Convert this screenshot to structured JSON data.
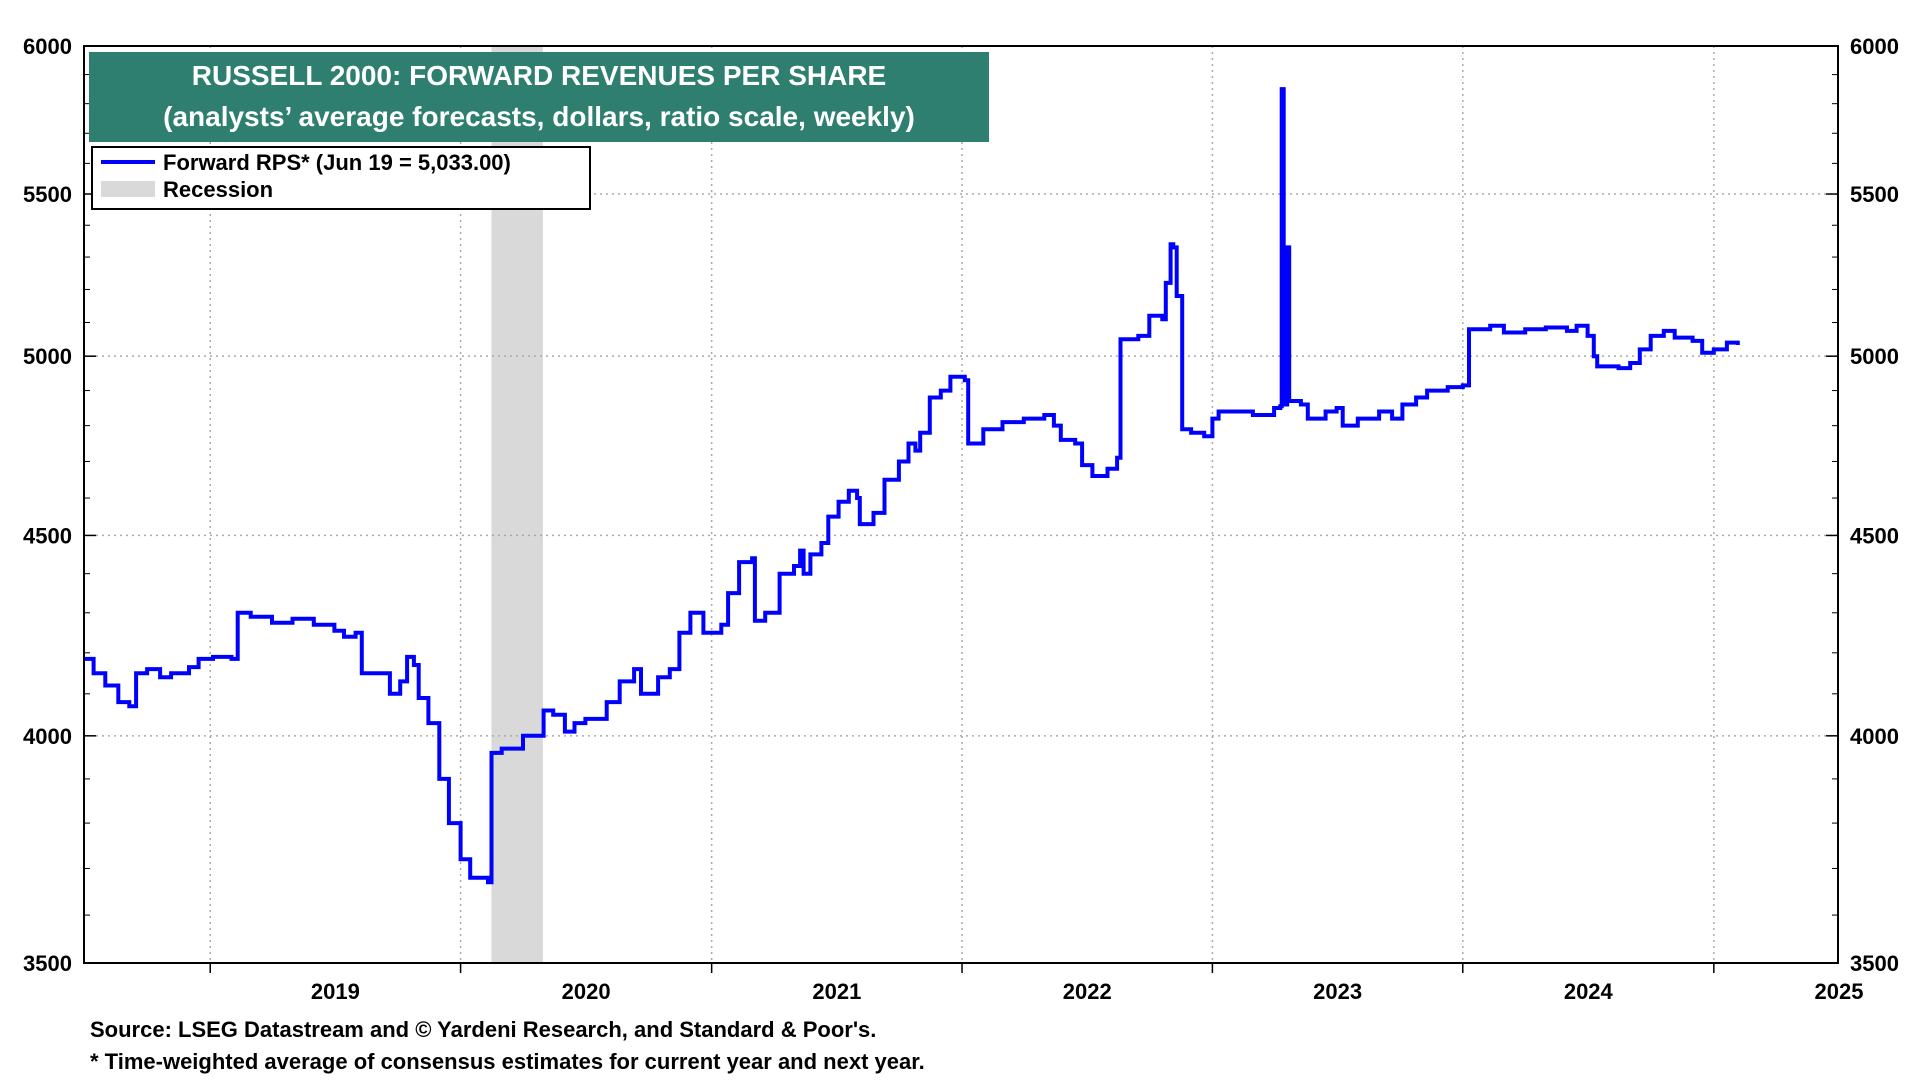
{
  "chart_data": {
    "type": "line",
    "title": "RUSSELL 2000: FORWARD REVENUES PER SHARE",
    "subtitle": "(analysts’ average forecasts, dollars, ratio scale, weekly)",
    "scale": "log",
    "ylim": [
      3500,
      6000
    ],
    "y_ticks": [
      3500,
      4000,
      4500,
      5000,
      5500,
      6000
    ],
    "y_tick_labels": [
      "3500",
      "4000",
      "4500",
      "5000",
      "5500",
      "6000"
    ],
    "x_range": [
      "2018-07-01",
      "2025-07-01"
    ],
    "x_tick_labels": [
      "2019",
      "2020",
      "2021",
      "2022",
      "2023",
      "2024",
      "2025"
    ],
    "grid": true,
    "legend_position": "top-left",
    "colors": {
      "series": "#0000ff",
      "recession": "#d9d9d9",
      "title_bg": "#2e7f6f",
      "grid": "#aaaaaa"
    },
    "series": [
      {
        "name": "Forward RPS* (Jun 19 = 5,033.00)",
        "points": [
          [
            "2018-07-01",
            4185
          ],
          [
            "2018-07-15",
            4150
          ],
          [
            "2018-08-01",
            4120
          ],
          [
            "2018-08-20",
            4080
          ],
          [
            "2018-09-05",
            4070
          ],
          [
            "2018-09-15",
            4150
          ],
          [
            "2018-10-01",
            4160
          ],
          [
            "2018-10-20",
            4140
          ],
          [
            "2018-11-05",
            4150
          ],
          [
            "2018-12-01",
            4165
          ],
          [
            "2018-12-15",
            4185
          ],
          [
            "2019-01-05",
            4190
          ],
          [
            "2019-02-01",
            4185
          ],
          [
            "2019-02-10",
            4300
          ],
          [
            "2019-03-01",
            4290
          ],
          [
            "2019-04-01",
            4275
          ],
          [
            "2019-05-01",
            4285
          ],
          [
            "2019-06-01",
            4270
          ],
          [
            "2019-07-01",
            4255
          ],
          [
            "2019-07-15",
            4240
          ],
          [
            "2019-08-01",
            4250
          ],
          [
            "2019-08-10",
            4150
          ],
          [
            "2019-09-01",
            4150
          ],
          [
            "2019-09-20",
            4100
          ],
          [
            "2019-10-05",
            4130
          ],
          [
            "2019-10-15",
            4190
          ],
          [
            "2019-10-25",
            4170
          ],
          [
            "2019-11-01",
            4090
          ],
          [
            "2019-11-15",
            4030
          ],
          [
            "2019-12-01",
            3900
          ],
          [
            "2019-12-15",
            3800
          ],
          [
            "2020-01-01",
            3720
          ],
          [
            "2020-01-15",
            3680
          ],
          [
            "2020-02-01",
            3680
          ],
          [
            "2020-02-10",
            3670
          ],
          [
            "2020-02-15",
            3960
          ],
          [
            "2020-03-01",
            3970
          ],
          [
            "2020-04-01",
            4000
          ],
          [
            "2020-05-01",
            4060
          ],
          [
            "2020-05-15",
            4050
          ],
          [
            "2020-06-01",
            4010
          ],
          [
            "2020-06-15",
            4030
          ],
          [
            "2020-07-01",
            4040
          ],
          [
            "2020-08-01",
            4080
          ],
          [
            "2020-08-20",
            4130
          ],
          [
            "2020-09-10",
            4160
          ],
          [
            "2020-09-20",
            4100
          ],
          [
            "2020-10-15",
            4140
          ],
          [
            "2020-11-01",
            4160
          ],
          [
            "2020-11-15",
            4250
          ],
          [
            "2020-12-01",
            4300
          ],
          [
            "2020-12-20",
            4250
          ],
          [
            "2021-01-15",
            4270
          ],
          [
            "2021-01-25",
            4350
          ],
          [
            "2021-02-10",
            4430
          ],
          [
            "2021-03-01",
            4440
          ],
          [
            "2021-03-05",
            4280
          ],
          [
            "2021-03-20",
            4300
          ],
          [
            "2021-04-10",
            4400
          ],
          [
            "2021-05-01",
            4420
          ],
          [
            "2021-05-10",
            4460
          ],
          [
            "2021-05-15",
            4400
          ],
          [
            "2021-05-25",
            4450
          ],
          [
            "2021-06-10",
            4480
          ],
          [
            "2021-06-20",
            4550
          ],
          [
            "2021-07-05",
            4590
          ],
          [
            "2021-07-20",
            4620
          ],
          [
            "2021-08-01",
            4600
          ],
          [
            "2021-08-05",
            4530
          ],
          [
            "2021-08-25",
            4560
          ],
          [
            "2021-09-10",
            4650
          ],
          [
            "2021-10-01",
            4700
          ],
          [
            "2021-10-15",
            4750
          ],
          [
            "2021-10-25",
            4730
          ],
          [
            "2021-11-01",
            4780
          ],
          [
            "2021-11-15",
            4880
          ],
          [
            "2021-12-01",
            4900
          ],
          [
            "2021-12-15",
            4940
          ],
          [
            "2022-01-05",
            4930
          ],
          [
            "2022-01-10",
            4750
          ],
          [
            "2022-02-01",
            4790
          ],
          [
            "2022-03-01",
            4810
          ],
          [
            "2022-04-01",
            4820
          ],
          [
            "2022-05-01",
            4830
          ],
          [
            "2022-05-15",
            4800
          ],
          [
            "2022-05-25",
            4760
          ],
          [
            "2022-06-15",
            4750
          ],
          [
            "2022-06-25",
            4690
          ],
          [
            "2022-07-10",
            4660
          ],
          [
            "2022-08-01",
            4680
          ],
          [
            "2022-08-15",
            4710
          ],
          [
            "2022-08-20",
            5050
          ],
          [
            "2022-09-15",
            5060
          ],
          [
            "2022-10-01",
            5120
          ],
          [
            "2022-10-20",
            5110
          ],
          [
            "2022-10-25",
            5220
          ],
          [
            "2022-11-01",
            5340
          ],
          [
            "2022-11-05",
            5330
          ],
          [
            "2022-11-10",
            5180
          ],
          [
            "2022-11-15",
            5180
          ],
          [
            "2022-11-18",
            4790
          ],
          [
            "2022-12-01",
            4780
          ],
          [
            "2022-12-20",
            4770
          ],
          [
            "2023-01-01",
            4820
          ],
          [
            "2023-01-10",
            4840
          ],
          [
            "2023-02-01",
            4840
          ],
          [
            "2023-03-01",
            4830
          ],
          [
            "2023-04-01",
            4850
          ],
          [
            "2023-04-10",
            4855
          ],
          [
            "2023-04-12",
            5850
          ],
          [
            "2023-04-15",
            4860
          ],
          [
            "2023-04-20",
            5330
          ],
          [
            "2023-04-23",
            4870
          ],
          [
            "2023-05-10",
            4860
          ],
          [
            "2023-05-20",
            4820
          ],
          [
            "2023-06-15",
            4840
          ],
          [
            "2023-07-01",
            4850
          ],
          [
            "2023-07-10",
            4800
          ],
          [
            "2023-08-01",
            4820
          ],
          [
            "2023-09-01",
            4840
          ],
          [
            "2023-09-20",
            4820
          ],
          [
            "2023-10-05",
            4860
          ],
          [
            "2023-10-25",
            4880
          ],
          [
            "2023-11-10",
            4900
          ],
          [
            "2023-12-01",
            4900
          ],
          [
            "2023-12-10",
            4910
          ],
          [
            "2024-01-01",
            4915
          ],
          [
            "2024-01-10",
            5080
          ],
          [
            "2024-02-10",
            5090
          ],
          [
            "2024-03-01",
            5070
          ],
          [
            "2024-04-01",
            5080
          ],
          [
            "2024-05-01",
            5085
          ],
          [
            "2024-06-01",
            5075
          ],
          [
            "2024-06-15",
            5090
          ],
          [
            "2024-07-01",
            5060
          ],
          [
            "2024-07-10",
            5000
          ],
          [
            "2024-07-15",
            4970
          ],
          [
            "2024-08-15",
            4965
          ],
          [
            "2024-09-01",
            4980
          ],
          [
            "2024-09-15",
            5020
          ],
          [
            "2024-10-01",
            5060
          ],
          [
            "2024-10-20",
            5075
          ],
          [
            "2024-11-05",
            5055
          ],
          [
            "2024-12-01",
            5045
          ],
          [
            "2024-12-15",
            5010
          ],
          [
            "2025-01-01",
            5020
          ],
          [
            "2025-01-20",
            5040
          ],
          [
            "2025-02-05",
            5033
          ]
        ]
      },
      {
        "name": "Recession",
        "span": [
          "2020-02-15",
          "2020-04-30"
        ]
      }
    ],
    "annotations": [
      "Source: LSEG Datastream and © Yardeni Research, and Standard & Poor's.",
      "* Time-weighted average of consensus estimates for current year and next year."
    ]
  }
}
